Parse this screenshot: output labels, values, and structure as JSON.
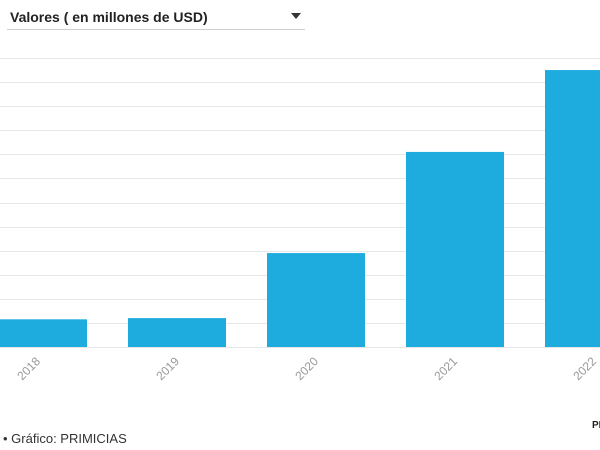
{
  "selector": {
    "selected": "Valores ( en millones de USD)",
    "icon": "caret-down-icon"
  },
  "chart_data": {
    "type": "bar",
    "title": "",
    "xlabel": "",
    "ylabel": "",
    "categories": [
      "2018",
      "2019",
      "2020",
      "2021",
      "2022"
    ],
    "values": [
      1.15,
      1.2,
      3.9,
      8.1,
      11.5
    ],
    "ylim": [
      0,
      12
    ],
    "y_tick_step": 1,
    "grid": true,
    "legend": "none",
    "bar_color": "#1eacdf",
    "tick_label_color": "#999999",
    "grid_color": "#e6e6e6"
  },
  "footer": {
    "source": "• Gráfico: PRIMICIAS",
    "logo_text": "PR"
  }
}
